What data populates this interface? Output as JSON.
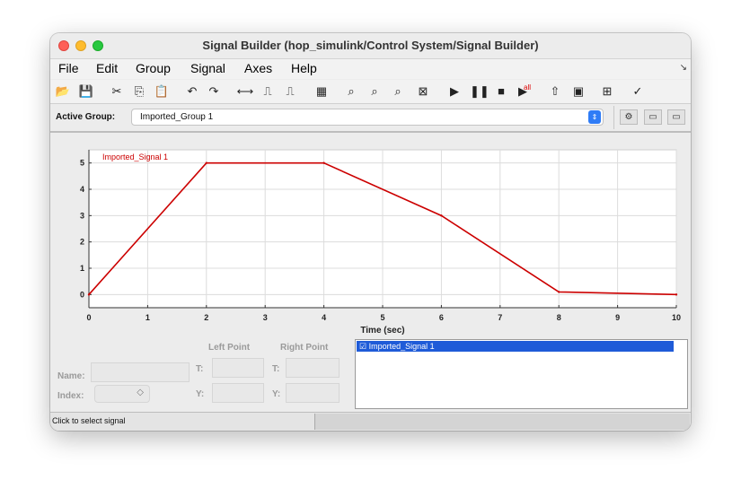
{
  "window": {
    "title": "Signal Builder (hop_simulink/Control System/Signal Builder)"
  },
  "menu": [
    "File",
    "Edit",
    "Group",
    "Signal",
    "Axes",
    "Help"
  ],
  "toolbar": {
    "icons": [
      {
        "name": "open-icon",
        "glyph": "📂"
      },
      {
        "name": "save-icon",
        "glyph": "💾"
      },
      {
        "name": "cut-icon",
        "glyph": "✂"
      },
      {
        "name": "copy-icon",
        "glyph": "⎘"
      },
      {
        "name": "paste-icon",
        "glyph": "📋"
      },
      {
        "name": "undo-icon",
        "glyph": "↶"
      },
      {
        "name": "redo-icon",
        "glyph": "↷"
      },
      {
        "name": "line-segment-icon",
        "glyph": "⟷"
      },
      {
        "name": "step-icon",
        "glyph": "⎍"
      },
      {
        "name": "pulse-icon",
        "glyph": "⎍"
      },
      {
        "name": "grid-icon",
        "glyph": "▦"
      },
      {
        "name": "zoom-x-icon",
        "glyph": "⌕"
      },
      {
        "name": "zoom-y-icon",
        "glyph": "⌕"
      },
      {
        "name": "zoom-xy-icon",
        "glyph": "⌕"
      },
      {
        "name": "fit-view-icon",
        "glyph": "⊠"
      },
      {
        "name": "start-icon",
        "glyph": "▶"
      },
      {
        "name": "pause-icon",
        "glyph": "❚❚"
      },
      {
        "name": "stop-icon",
        "glyph": "■"
      },
      {
        "name": "run-all-icon",
        "glyph": "▶"
      },
      {
        "name": "up-arrow-icon",
        "glyph": "⇧"
      },
      {
        "name": "show-model-icon",
        "glyph": "▣"
      },
      {
        "name": "scope-icon",
        "glyph": "⊞"
      },
      {
        "name": "requirements-icon",
        "glyph": "✓"
      }
    ],
    "run_all_badge": "all"
  },
  "groupbar": {
    "label": "Active Group:",
    "selected": "Imported_Group 1"
  },
  "chart_data": {
    "type": "line",
    "series": [
      {
        "name": "Imported_Signal 1",
        "x": [
          0,
          2,
          4,
          6,
          8,
          10
        ],
        "y": [
          0,
          5,
          5,
          3,
          0.1,
          0
        ],
        "color": "#cc0000"
      }
    ],
    "xlim": [
      0,
      10
    ],
    "ylim": [
      -0.5,
      5.5
    ],
    "xticks": [
      "0",
      "1",
      "2",
      "3",
      "4",
      "5",
      "6",
      "7",
      "8",
      "9",
      "10"
    ],
    "yticks": [
      "0",
      "1",
      "2",
      "3",
      "4",
      "5"
    ],
    "xlabel": "Time (sec)",
    "grid": true
  },
  "editor": {
    "left_point": "Left Point",
    "right_point": "Right Point",
    "name_label": "Name:",
    "index_label": "Index:",
    "t_label": "T:",
    "y_label": "Y:",
    "index_chevron": "◇"
  },
  "signal_list": [
    "Imported_Signal 1"
  ],
  "signal_checkbox": "☑",
  "status": {
    "text": "Click to select signal"
  },
  "colors": {
    "signal": "#cc0000",
    "selection": "#1f5bd8"
  }
}
